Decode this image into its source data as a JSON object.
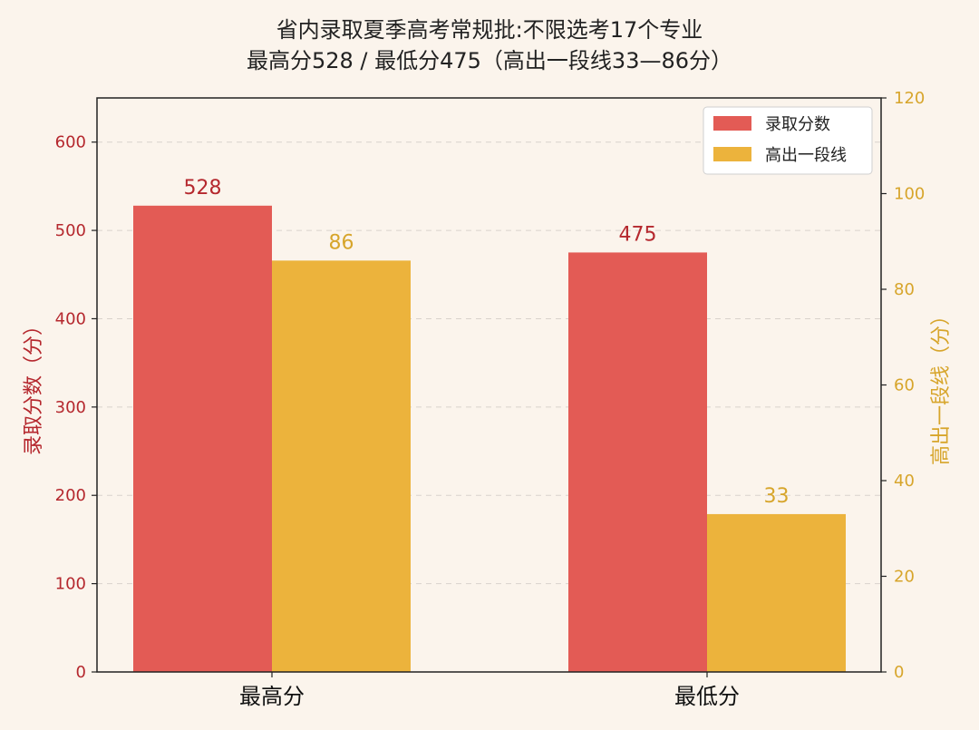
{
  "chart_data": {
    "type": "bar",
    "title": "省内录取夏季高考常规批:不限选考17个专业",
    "subtitle": "最高分528 / 最低分475（高出一段线33—86分）",
    "categories": [
      "最高分",
      "最低分"
    ],
    "series": [
      {
        "name": "录取分数",
        "axis": "left",
        "values": [
          528,
          475
        ],
        "color": "#e35b55"
      },
      {
        "name": "高出一段线",
        "axis": "right",
        "values": [
          86,
          33
        ],
        "color": "#ecb33c"
      }
    ],
    "ylabel": "录取分数（分）",
    "ylim": [
      0,
      650
    ],
    "yticks": [
      "0",
      "100",
      "200",
      "300",
      "400",
      "500",
      "600"
    ],
    "y2label": "高出一段线（分）",
    "y2lim": [
      0,
      120
    ],
    "y2ticks": [
      "0",
      "20",
      "40",
      "60",
      "80",
      "100",
      "120"
    ],
    "grid": true,
    "legend_position": "top-right",
    "colors": {
      "left_axis": "#b5282e",
      "right_axis": "#d7a52b",
      "grid": "#d9d2cb",
      "axis_line": "#222222",
      "plot_bg": "#fbf4ec"
    }
  }
}
